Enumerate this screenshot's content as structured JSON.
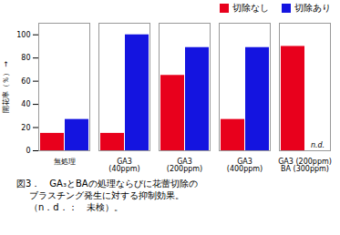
{
  "chart_data": {
    "type": "bar",
    "categories": [
      "無処理",
      "GA3\n(40ppm)",
      "GA3\n(200ppm)",
      "GA3\n(400ppm)",
      "GA3 (200ppm)\nBA (300ppm)"
    ],
    "series": [
      {
        "name": "切除なし",
        "color": "#e8001c",
        "values": [
          15,
          15,
          65,
          27,
          90
        ]
      },
      {
        "name": "切除あり",
        "color": "#1414e0",
        "values": [
          27,
          100,
          89,
          89,
          0
        ]
      }
    ],
    "ylabel": "開花率（％）",
    "ylim": [
      0,
      110
    ],
    "yticks": [
      0,
      20,
      40,
      60,
      80,
      100
    ],
    "grid": false,
    "annotations": [
      {
        "text": "n.d.",
        "category": "GA3 (200ppm)\nBA (300ppm)",
        "series": "切除あり"
      }
    ],
    "caption": [
      "図3．　GA₃とBAの処理ならびに花蕾切除の",
      "ブラスチング発生に対する抑制効果。",
      "（n．d．：　未検）。"
    ]
  }
}
